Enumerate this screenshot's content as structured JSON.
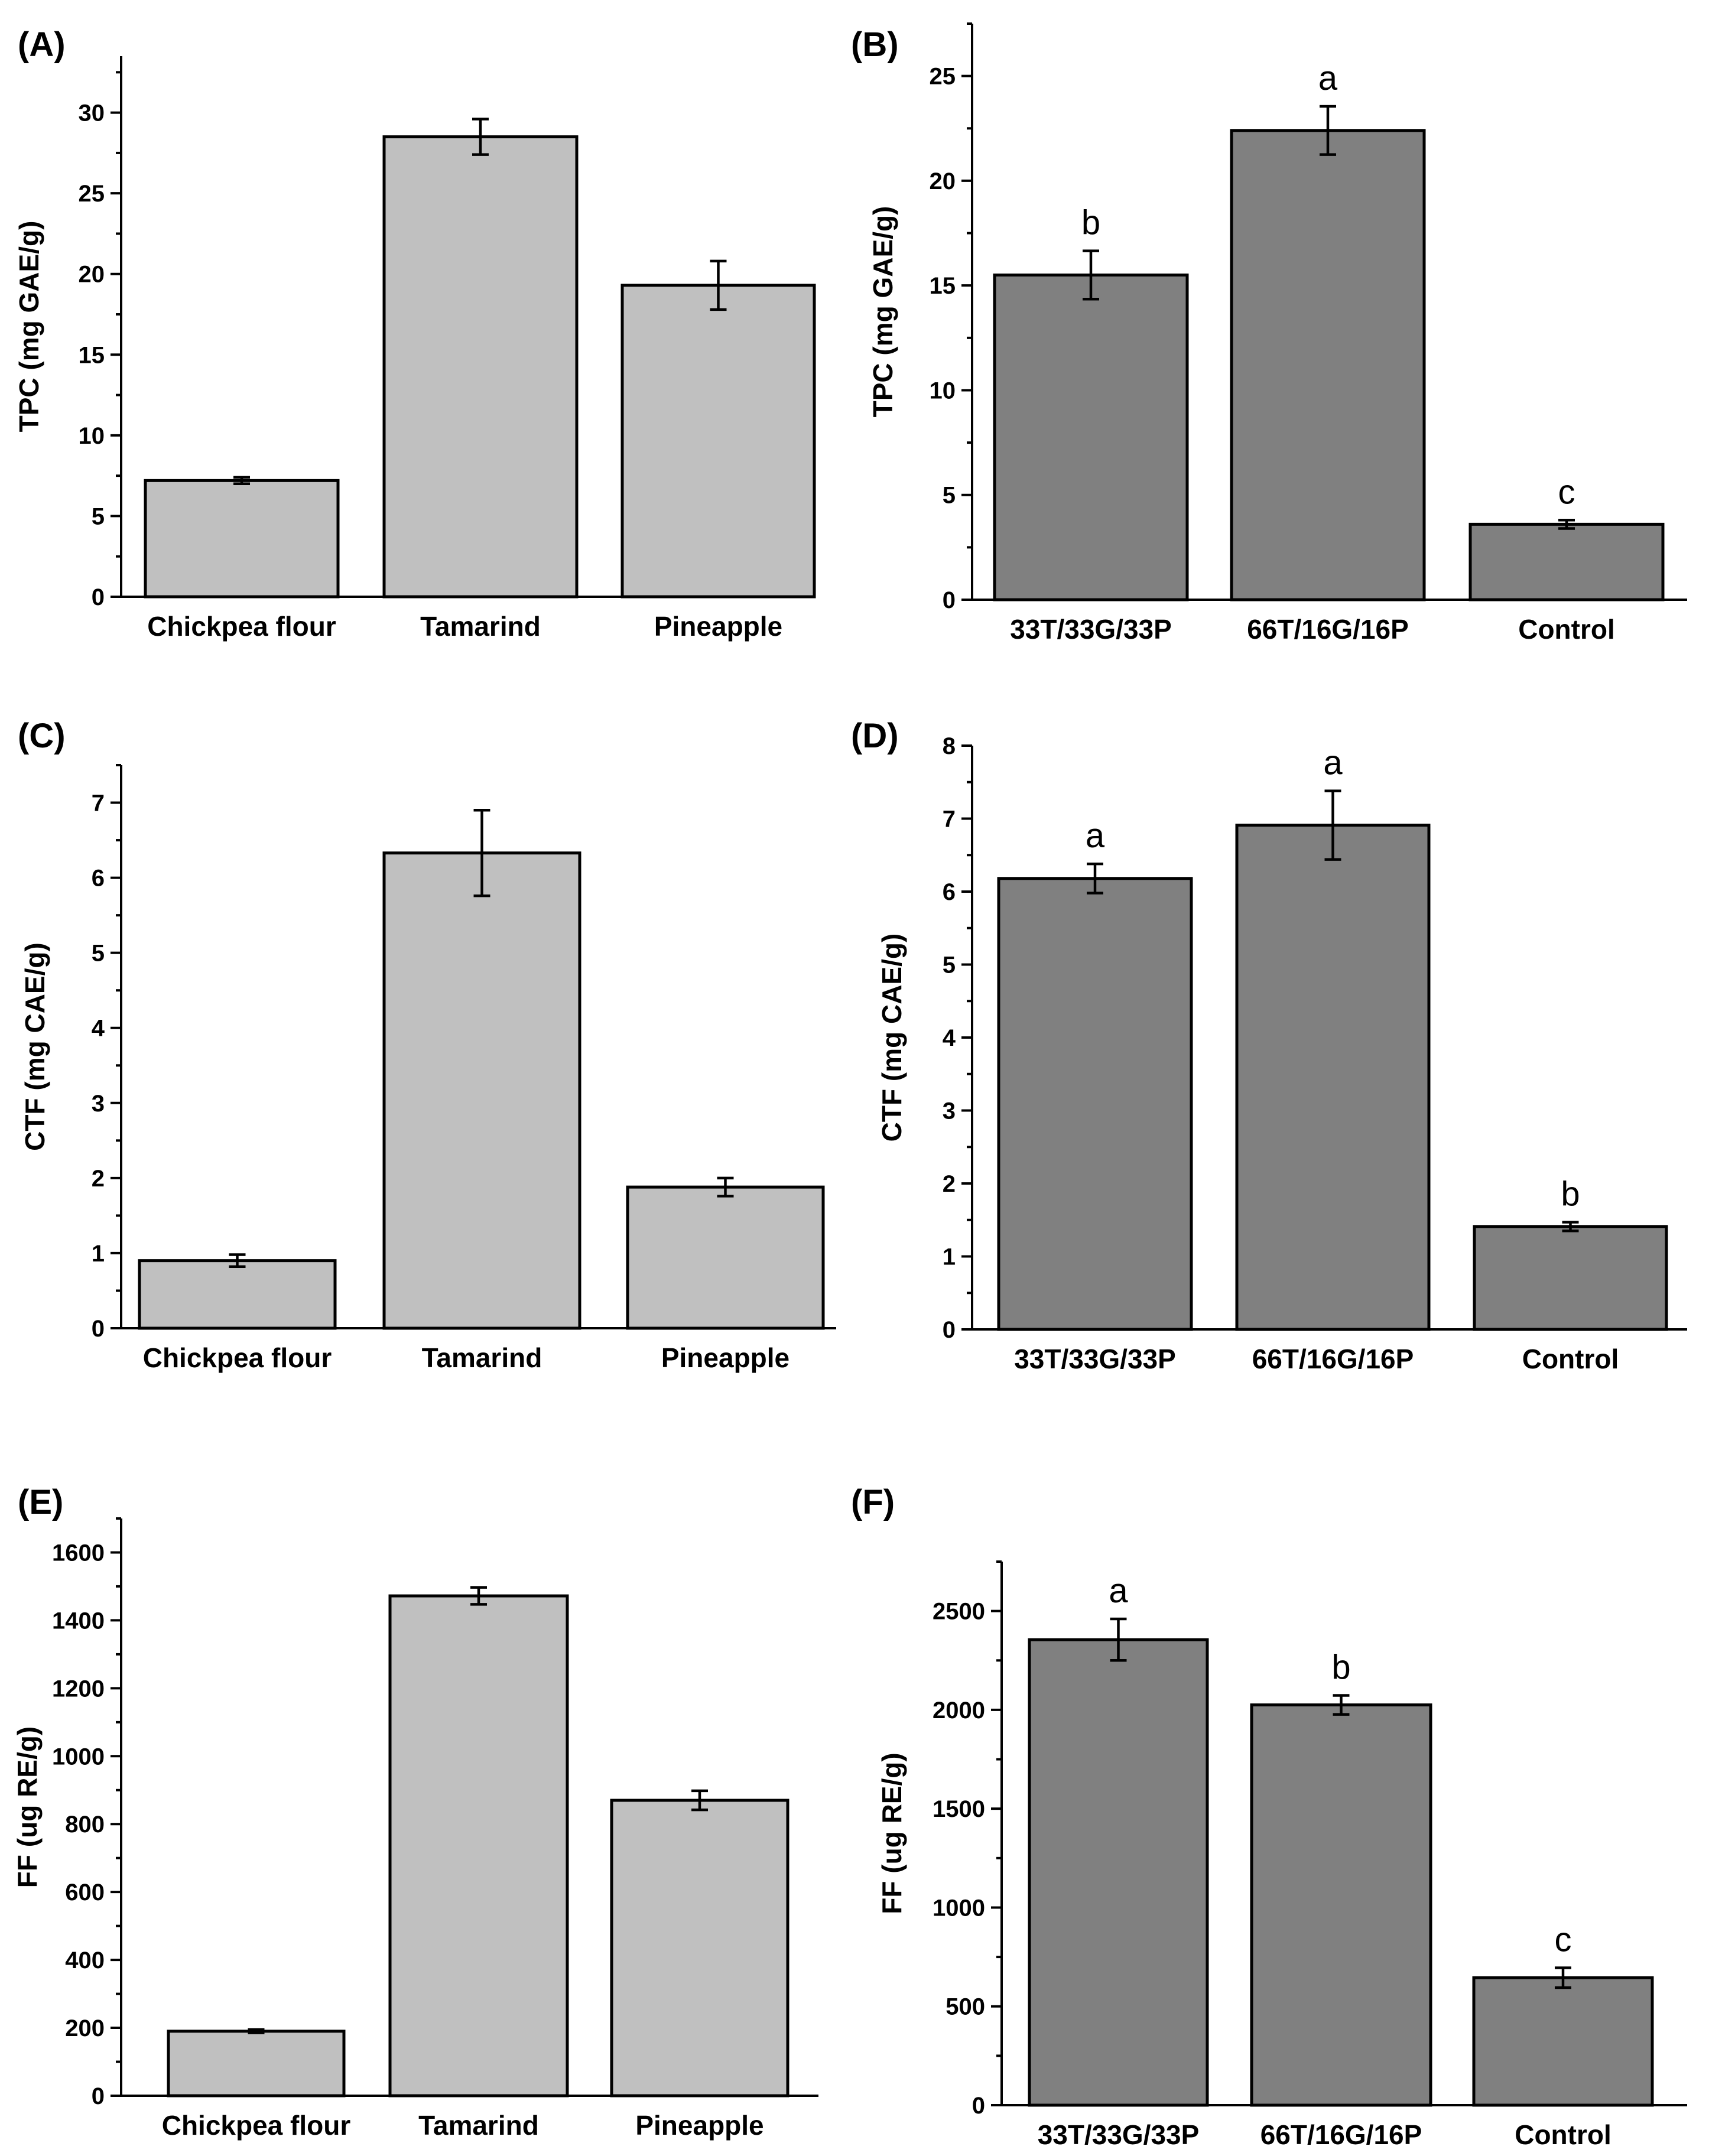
{
  "chart_data": [
    {
      "panel": "(A)",
      "type": "bar",
      "categories": [
        "Chickpea flour",
        "Tamarind",
        "Pineapple"
      ],
      "values": [
        7.2,
        28.5,
        19.3
      ],
      "errors": [
        0.2,
        1.1,
        1.5
      ],
      "ylabel": "TPC (mg GAE/g)",
      "ylim": [
        0,
        33.5
      ],
      "yticks": [
        0,
        5,
        10,
        15,
        20,
        25,
        30
      ],
      "minor_step": 2.5,
      "bar_color": "#c0c0c0",
      "sig_labels": []
    },
    {
      "panel": "(B)",
      "type": "bar",
      "categories": [
        "33T/33G/33P",
        "66T/16G/16P",
        "Control"
      ],
      "values": [
        15.5,
        22.4,
        3.6
      ],
      "errors": [
        1.15,
        1.15,
        0.2
      ],
      "ylabel": "TPC (mg GAE/g)",
      "ylim": [
        0,
        27.5
      ],
      "yticks": [
        0,
        5,
        10,
        15,
        20,
        25
      ],
      "minor_step": 2.5,
      "bar_color": "#808080",
      "sig_labels": [
        "b",
        "a",
        "c"
      ]
    },
    {
      "panel": "(C)",
      "type": "bar",
      "categories": [
        "Chickpea flour",
        "Tamarind",
        "Pineapple"
      ],
      "values": [
        0.9,
        6.33,
        1.88
      ],
      "errors": [
        0.08,
        0.57,
        0.12
      ],
      "ylabel": "CTF (mg CAE/g)",
      "ylim": [
        0,
        7.5
      ],
      "yticks": [
        0,
        1,
        2,
        3,
        4,
        5,
        6,
        7
      ],
      "minor_step": 0.5,
      "bar_color": "#c0c0c0",
      "sig_labels": []
    },
    {
      "panel": "(D)",
      "type": "bar",
      "categories": [
        "33T/33G/33P",
        "66T/16G/16P",
        "Control"
      ],
      "values": [
        6.18,
        6.91,
        1.41
      ],
      "errors": [
        0.2,
        0.47,
        0.06
      ],
      "ylabel": "CTF (mg CAE/g)",
      "ylim": [
        0,
        8
      ],
      "yticks": [
        0,
        1,
        2,
        3,
        4,
        5,
        6,
        7,
        8
      ],
      "minor_step": 0.5,
      "bar_color": "#808080",
      "sig_labels": [
        "a",
        "a",
        "b"
      ]
    },
    {
      "panel": "(E)",
      "type": "bar",
      "categories": [
        "Chickpea flour",
        "Tamarind",
        "Pineapple"
      ],
      "values": [
        190,
        1472,
        870
      ],
      "errors": [
        5,
        25,
        28
      ],
      "ylabel": "FF (ug RE/g)",
      "ylim": [
        0,
        1700
      ],
      "yticks": [
        0,
        200,
        400,
        600,
        800,
        1000,
        1200,
        1400,
        1600
      ],
      "minor_step": 100,
      "bar_color": "#c0c0c0",
      "sig_labels": []
    },
    {
      "panel": "(F)",
      "type": "bar",
      "categories": [
        "33T/33G/33P",
        "66T/16G/16P",
        "Control"
      ],
      "values": [
        2355,
        2025,
        645
      ],
      "errors": [
        105,
        48,
        50
      ],
      "ylabel": "FF (ug RE/g)",
      "ylim": [
        0,
        2750
      ],
      "yticks": [
        0,
        500,
        1000,
        1500,
        2000,
        2500
      ],
      "minor_step": 250,
      "bar_color": "#808080",
      "sig_labels": [
        "a",
        "b",
        "c"
      ]
    }
  ]
}
